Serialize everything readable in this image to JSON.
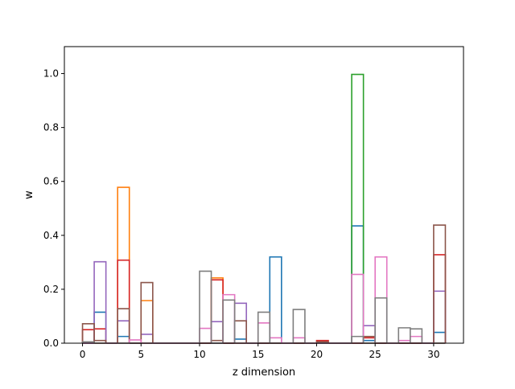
{
  "chart_data": {
    "type": "bar",
    "title": "",
    "xlabel": "z dimension",
    "ylabel": "w",
    "xlim": [
      -1.55,
      32.55
    ],
    "ylim": [
      0,
      1.1
    ],
    "xticks": [
      0,
      5,
      10,
      15,
      20,
      25,
      30
    ],
    "yticks": [
      0.0,
      0.2,
      0.4,
      0.6,
      0.8,
      1.0
    ],
    "histtype": "step",
    "bin_width": 1,
    "grid": false,
    "legend": "none",
    "series": [
      {
        "color": "#1f77b4",
        "x": [
          0,
          1,
          2,
          3,
          4,
          5,
          6,
          7,
          8,
          9,
          10,
          11,
          12,
          13,
          14,
          15,
          16,
          17,
          18,
          19,
          20,
          21,
          22,
          23,
          24,
          25,
          26,
          27,
          28,
          29,
          30
        ],
        "values": [
          0,
          0.115,
          0,
          0.025,
          0,
          0,
          0,
          0,
          0,
          0,
          0,
          0,
          0,
          0.015,
          0,
          0,
          0.32,
          0,
          0,
          0,
          0,
          0,
          0,
          0.435,
          0.01,
          0,
          0,
          0,
          0,
          0,
          0.04
        ]
      },
      {
        "color": "#ff7f0e",
        "x": [
          0,
          1,
          2,
          3,
          4,
          5,
          6,
          7,
          8,
          9,
          10,
          11,
          12,
          13,
          14,
          15,
          16,
          17,
          18,
          19,
          20,
          21,
          22,
          23,
          24,
          25,
          26,
          27,
          28,
          29,
          30
        ],
        "values": [
          0,
          0,
          0,
          0.578,
          0,
          0.158,
          0,
          0,
          0,
          0,
          0,
          0.242,
          0,
          0,
          0,
          0,
          0,
          0,
          0,
          0,
          0,
          0,
          0,
          0,
          0,
          0,
          0,
          0,
          0,
          0,
          0
        ]
      },
      {
        "color": "#2ca02c",
        "x": [
          0,
          1,
          2,
          3,
          4,
          5,
          6,
          7,
          8,
          9,
          10,
          11,
          12,
          13,
          14,
          15,
          16,
          17,
          18,
          19,
          20,
          21,
          22,
          23,
          24,
          25,
          26,
          27,
          28,
          29,
          30
        ],
        "values": [
          0,
          0,
          0,
          0,
          0,
          0,
          0,
          0,
          0,
          0,
          0,
          0,
          0,
          0,
          0,
          0,
          0,
          0,
          0,
          0,
          0,
          0,
          0,
          0.997,
          0,
          0,
          0,
          0,
          0,
          0,
          0
        ]
      },
      {
        "color": "#d62728",
        "x": [
          0,
          1,
          2,
          3,
          4,
          5,
          6,
          7,
          8,
          9,
          10,
          11,
          12,
          13,
          14,
          15,
          16,
          17,
          18,
          19,
          20,
          21,
          22,
          23,
          24,
          25,
          26,
          27,
          28,
          29,
          30
        ],
        "values": [
          0.05,
          0.053,
          0,
          0.308,
          0,
          0,
          0,
          0,
          0,
          0,
          0,
          0.235,
          0,
          0,
          0,
          0,
          0,
          0,
          0,
          0,
          0.01,
          0,
          0,
          0,
          0.02,
          0,
          0,
          0,
          0,
          0,
          0.328
        ]
      },
      {
        "color": "#9467bd",
        "x": [
          0,
          1,
          2,
          3,
          4,
          5,
          6,
          7,
          8,
          9,
          10,
          11,
          12,
          13,
          14,
          15,
          16,
          17,
          18,
          19,
          20,
          21,
          22,
          23,
          24,
          25,
          26,
          27,
          28,
          29,
          30
        ],
        "values": [
          0,
          0.302,
          0,
          0.083,
          0,
          0.033,
          0,
          0,
          0,
          0,
          0,
          0.08,
          0,
          0.148,
          0,
          0,
          0,
          0,
          0,
          0,
          0,
          0,
          0,
          0,
          0.065,
          0,
          0,
          0,
          0,
          0,
          0.193
        ]
      },
      {
        "color": "#8c564b",
        "x": [
          0,
          1,
          2,
          3,
          4,
          5,
          6,
          7,
          8,
          9,
          10,
          11,
          12,
          13,
          14,
          15,
          16,
          17,
          18,
          19,
          20,
          21,
          22,
          23,
          24,
          25,
          26,
          27,
          28,
          29,
          30
        ],
        "values": [
          0.072,
          0.01,
          0,
          0.128,
          0,
          0.225,
          0,
          0,
          0,
          0,
          0,
          0.01,
          0,
          0.083,
          0,
          0,
          0,
          0,
          0,
          0,
          0.005,
          0,
          0,
          0,
          0.025,
          0,
          0,
          0,
          0,
          0,
          0.438
        ]
      },
      {
        "color": "#e377c2",
        "x": [
          0,
          1,
          2,
          3,
          4,
          5,
          6,
          7,
          8,
          9,
          10,
          11,
          12,
          13,
          14,
          15,
          16,
          17,
          18,
          19,
          20,
          21,
          22,
          23,
          24,
          25,
          26,
          27,
          28,
          29,
          30
        ],
        "values": [
          0,
          0,
          0,
          0,
          0.012,
          0,
          0,
          0,
          0,
          0,
          0.055,
          0,
          0.18,
          0,
          0,
          0.075,
          0.02,
          0,
          0.02,
          0,
          0,
          0,
          0,
          0.255,
          0,
          0.32,
          0,
          0.01,
          0.025,
          0,
          0
        ]
      },
      {
        "color": "#7f7f7f",
        "x": [
          0,
          1,
          2,
          3,
          4,
          5,
          6,
          7,
          8,
          9,
          10,
          11,
          12,
          13,
          14,
          15,
          16,
          17,
          18,
          19,
          20,
          21,
          22,
          23,
          24,
          25,
          26,
          27,
          28,
          29,
          30
        ],
        "values": [
          0.005,
          0,
          0,
          0,
          0,
          0,
          0,
          0,
          0,
          0,
          0.267,
          0,
          0.16,
          0,
          0,
          0.115,
          0,
          0,
          0.125,
          0,
          0,
          0,
          0,
          0.025,
          0,
          0.168,
          0,
          0.057,
          0.053,
          0,
          0
        ]
      }
    ]
  }
}
